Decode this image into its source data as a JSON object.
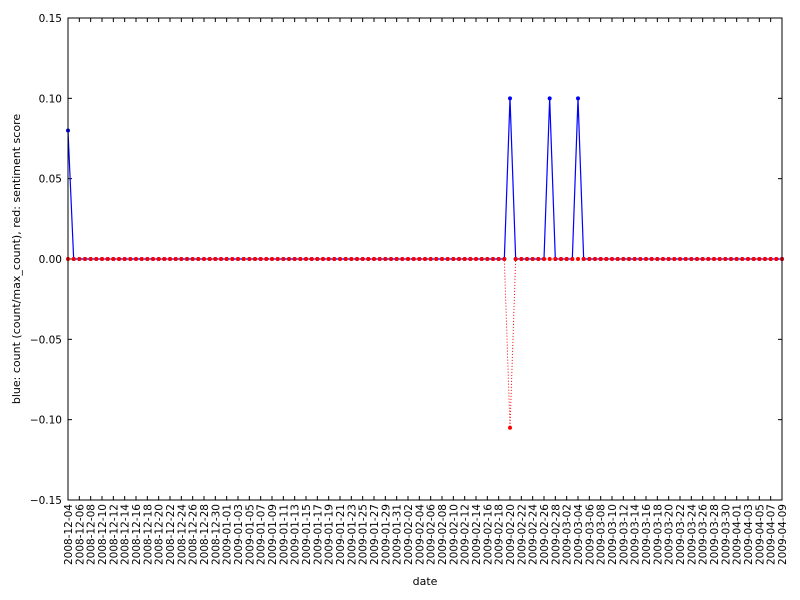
{
  "chart_data": {
    "type": "line",
    "title": "",
    "xlabel": "date",
    "ylabel": "blue: count (count/max_count), red: sentiment score",
    "x_range": [
      "2008-12-04",
      "2009-04-09"
    ],
    "ylim": [
      -0.15,
      0.15
    ],
    "yticks": [
      -0.15,
      -0.1,
      -0.05,
      0.0,
      0.05,
      0.1,
      0.15
    ],
    "ytick_labels": [
      "−0.15",
      "−0.10",
      "−0.05",
      "0.00",
      "0.05",
      "0.10",
      "0.15"
    ],
    "xtick_labels": [
      "2008-12-04",
      "2008-12-06",
      "2008-12-08",
      "2008-12-10",
      "2008-12-12",
      "2008-12-14",
      "2008-12-16",
      "2008-12-18",
      "2008-12-20",
      "2008-12-22",
      "2008-12-24",
      "2008-12-26",
      "2008-12-28",
      "2008-12-30",
      "2009-01-01",
      "2009-01-03",
      "2009-01-05",
      "2009-01-07",
      "2009-01-09",
      "2009-01-11",
      "2009-01-13",
      "2009-01-15",
      "2009-01-17",
      "2009-01-19",
      "2009-01-21",
      "2009-01-23",
      "2009-01-25",
      "2009-01-27",
      "2009-01-29",
      "2009-01-31",
      "2009-02-02",
      "2009-02-04",
      "2009-02-06",
      "2009-02-08",
      "2009-02-10",
      "2009-02-12",
      "2009-02-14",
      "2009-02-16",
      "2009-02-18",
      "2009-02-20",
      "2009-02-22",
      "2009-02-24",
      "2009-02-26",
      "2009-02-28",
      "2009-03-02",
      "2009-03-04",
      "2009-03-06",
      "2009-03-08",
      "2009-03-10",
      "2009-03-12",
      "2009-03-14",
      "2009-03-16",
      "2009-03-18",
      "2009-03-20",
      "2009-03-22",
      "2009-03-24",
      "2009-03-26",
      "2009-03-28",
      "2009-03-30",
      "2009-04-01",
      "2009-04-03",
      "2009-04-05",
      "2009-04-07",
      "2009-04-09"
    ],
    "grid": false,
    "legend": "none",
    "series": [
      {
        "color": "#0000ff",
        "line_style": "solid",
        "default_value": 0.0,
        "nonzero_points": [
          {
            "date": "2008-12-04",
            "value": 0.08
          },
          {
            "date": "2009-02-20",
            "value": 0.1
          },
          {
            "date": "2009-02-27",
            "value": 0.1
          },
          {
            "date": "2009-03-04",
            "value": 0.1
          }
        ]
      },
      {
        "color": "#ff0000",
        "line_style": "dotted",
        "default_value": 0.0,
        "nonzero_points": [
          {
            "date": "2009-02-20",
            "value": -0.105
          }
        ]
      }
    ]
  }
}
